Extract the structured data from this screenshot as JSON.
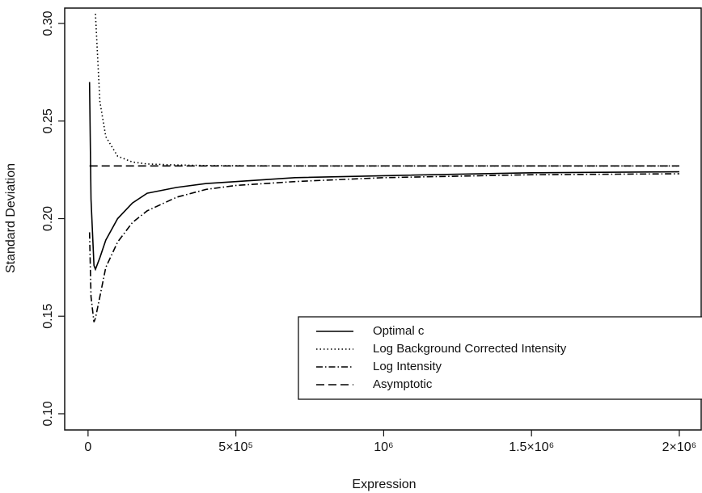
{
  "chart_data": {
    "type": "line",
    "x_label": "Expression",
    "y_label": "Standard Deviation",
    "x": [
      5000,
      10000,
      20000,
      25000,
      40000,
      60000,
      100000,
      150000,
      200000,
      300000,
      400000,
      500000,
      700000,
      1000000,
      1500000,
      2000000
    ],
    "series": [
      {
        "name": "Optimal c",
        "color": "#000000",
        "style": "solid",
        "values": [
          0.27,
          0.21,
          0.176,
          0.174,
          0.18,
          0.189,
          0.2,
          0.208,
          0.213,
          0.216,
          0.218,
          0.219,
          0.221,
          0.222,
          0.2235,
          0.224
        ]
      },
      {
        "name": "Log Background Corrected Intensity",
        "color": "#000000",
        "style": "dotted",
        "values": [
          null,
          null,
          null,
          0.305,
          0.26,
          0.242,
          0.232,
          0.229,
          0.228,
          0.2275,
          0.2272,
          0.2271,
          0.227,
          0.227,
          0.227,
          0.227
        ]
      },
      {
        "name": "Log Intensity",
        "color": "#000000",
        "style": "dashdot",
        "values": [
          0.193,
          0.16,
          0.147,
          0.149,
          0.16,
          0.175,
          0.188,
          0.198,
          0.204,
          0.211,
          0.215,
          0.217,
          0.219,
          0.221,
          0.2225,
          0.223
        ]
      },
      {
        "name": "Asymptotic",
        "color": "#000000",
        "style": "dashed",
        "values": [
          0.227,
          0.227,
          0.227,
          0.227,
          0.227,
          0.227,
          0.227,
          0.227,
          0.227,
          0.227,
          0.227,
          0.227,
          0.227,
          0.227,
          0.227,
          0.227
        ]
      }
    ],
    "xlim": [
      -79000,
      2074000
    ],
    "ylim": [
      0.0917,
      0.3079
    ],
    "xticks": [
      0,
      {
        "value": 500000,
        "label": "5×10⁵"
      },
      {
        "value": 1000000,
        "label": "10⁶"
      },
      {
        "value": 1500000,
        "label": "1.5×10⁶"
      },
      {
        "value": 2000000,
        "label": "2×10⁶"
      }
    ],
    "yticks": [
      {
        "value": 0.1,
        "label": "0.10"
      },
      0.15,
      {
        "value": 0.2,
        "label": "0.20"
      },
      0.25,
      {
        "value": 0.3,
        "label": "0.30"
      }
    ],
    "legend": "lower right",
    "grid": false
  }
}
